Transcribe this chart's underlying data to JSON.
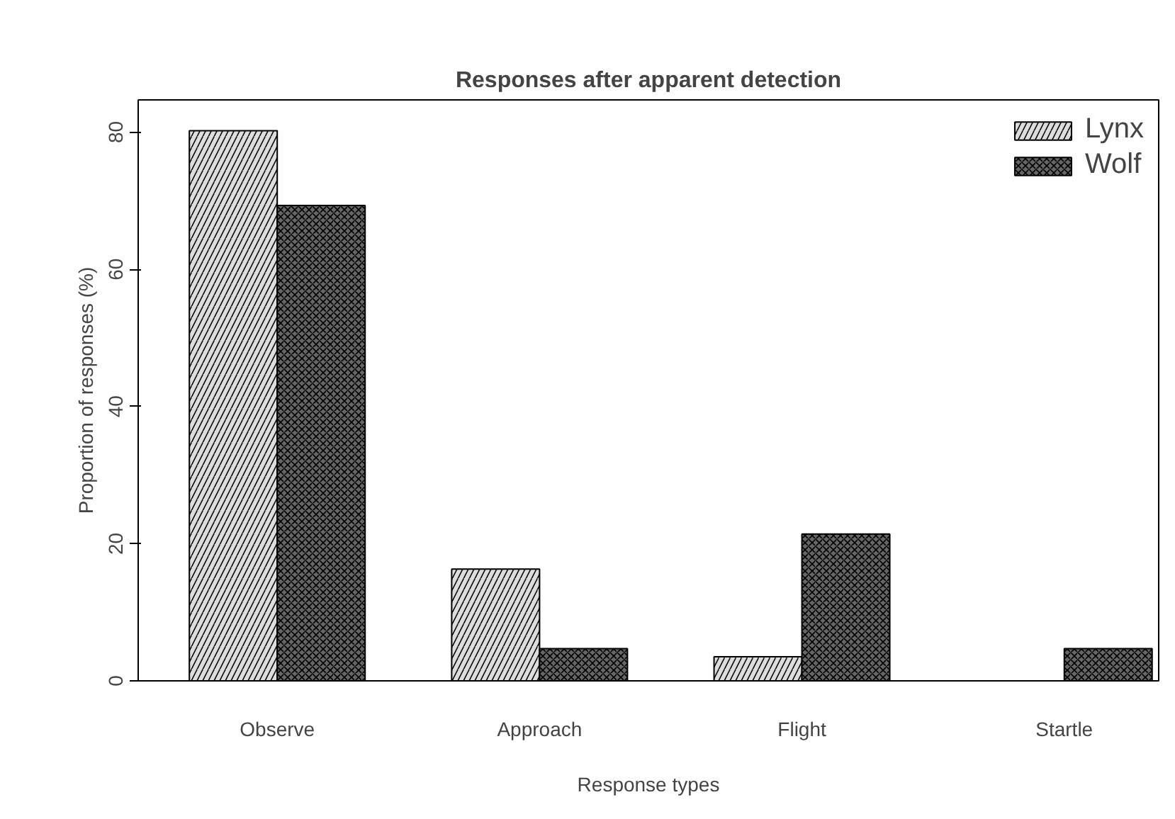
{
  "chart_data": {
    "type": "bar",
    "title": "Responses after apparent detection",
    "xlabel": "Response types",
    "ylabel": "Proportion of responses (%)",
    "categories": [
      "Observe",
      "Approach",
      "Flight",
      "Startle"
    ],
    "series": [
      {
        "name": "Lynx",
        "color": "#dddddd",
        "values": [
          80.2,
          16.3,
          3.5,
          0
        ]
      },
      {
        "name": "Wolf",
        "color": "#666666",
        "values": [
          69.3,
          4.7,
          21.4,
          4.7
        ]
      }
    ],
    "ylim": [
      0,
      84.7
    ],
    "yticks": [
      0,
      20,
      40,
      60,
      80
    ],
    "grid": false,
    "legend": "top right"
  }
}
